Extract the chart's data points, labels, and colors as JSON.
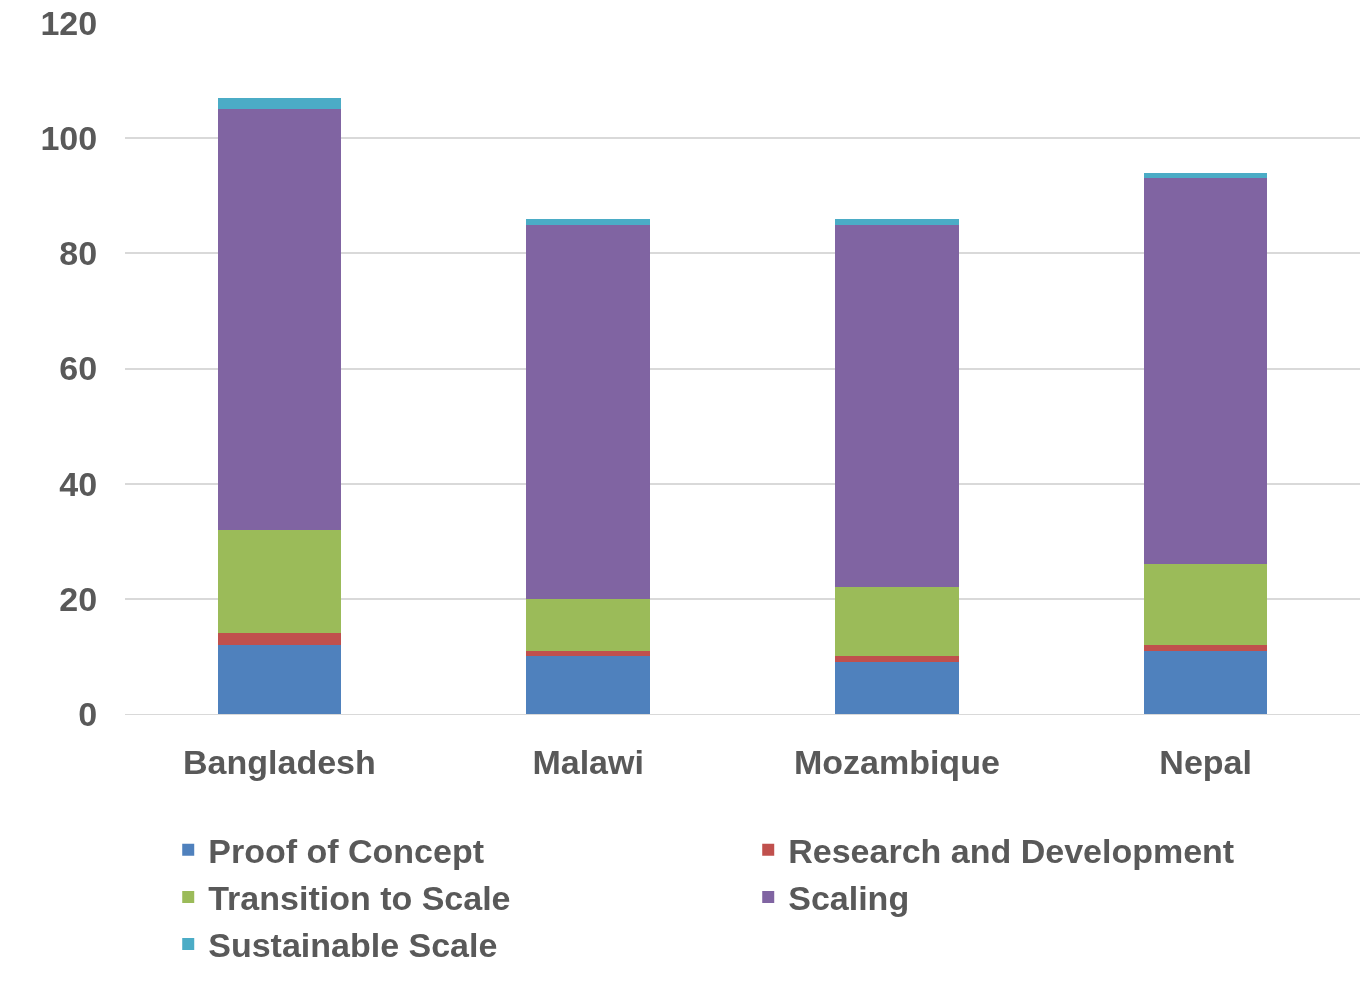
{
  "chart_data": {
    "type": "bar",
    "stacked": true,
    "categories": [
      "Bangladesh",
      "Malawi",
      "Mozambique",
      "Nepal"
    ],
    "series": [
      {
        "name": "Proof of Concept",
        "color": "#4f81bd",
        "values": [
          12,
          10,
          9,
          11
        ]
      },
      {
        "name": "Research and Development",
        "color": "#c0504d",
        "values": [
          2,
          1,
          1,
          1
        ]
      },
      {
        "name": "Transition to Scale",
        "color": "#9bbb59",
        "values": [
          18,
          9,
          12,
          14
        ]
      },
      {
        "name": "Scaling",
        "color": "#8064a2",
        "values": [
          73,
          65,
          63,
          67
        ]
      },
      {
        "name": "Sustainable Scale",
        "color": "#4bacc6",
        "values": [
          2,
          1,
          1,
          1
        ]
      }
    ],
    "ylim": [
      0,
      120
    ],
    "yticks": [
      0,
      20,
      40,
      60,
      80,
      100,
      120
    ],
    "grid": "y",
    "legend": "bottom"
  }
}
